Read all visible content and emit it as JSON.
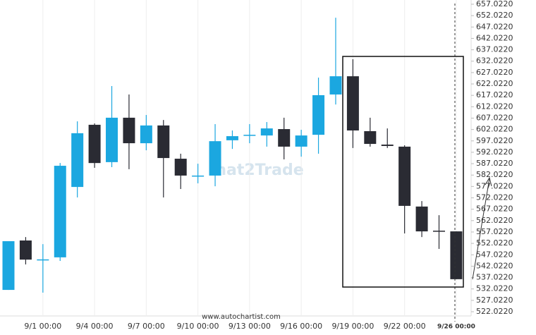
{
  "chart_data": {
    "type": "candlestick",
    "watermark": "hat2Trade",
    "source": "www.autochartist.com",
    "up_color": "#1ba7e0",
    "down_color": "#2a2b33",
    "categories": [
      null,
      null,
      "9/1 00:00",
      null,
      null,
      "9/4 00:00",
      null,
      null,
      "9/7 00:00",
      null,
      null,
      "9/10 00:00",
      null,
      null,
      "9/13 00:00",
      null,
      null,
      "9/16 00:00",
      null,
      null,
      "9/19 00:00",
      null,
      null,
      "9/22 00:00",
      null,
      null,
      "9/26 00:00"
    ],
    "open": [
      531.6,
      553.3,
      545.0,
      545.9,
      576.8,
      604.1,
      587.7,
      607.2,
      596.0,
      603.8,
      589.2,
      581.8,
      581.8,
      597.3,
      599.7,
      599.4,
      602.2,
      594.5,
      599.7,
      617.4,
      625.4,
      601.3,
      595.4,
      594.5,
      568.2,
      557.6,
      557.3
    ],
    "high": [
      553.0,
      554.8,
      551.7,
      587.3,
      605.6,
      604.7,
      621.1,
      617.4,
      608.4,
      606.2,
      591.4,
      587.0,
      604.4,
      601.6,
      604.4,
      605.3,
      607.2,
      601.9,
      624.8,
      651.1,
      632.9,
      607.2,
      602.5,
      595.1,
      570.6,
      564.4,
      557.3
    ],
    "low": [
      531.6,
      542.8,
      530.4,
      544.3,
      572.2,
      585.2,
      585.5,
      584.6,
      592.9,
      572.2,
      575.9,
      578.4,
      577.1,
      593.5,
      596.0,
      594.5,
      588.9,
      590.1,
      591.4,
      613.0,
      593.9,
      594.5,
      593.9,
      556.4,
      554.8,
      549.6,
      536.3
    ],
    "close": [
      553.0,
      544.9,
      545.0,
      586.1,
      600.4,
      587.3,
      607.2,
      596.0,
      603.8,
      589.5,
      581.8,
      581.8,
      596.9,
      599.1,
      599.7,
      602.5,
      594.5,
      599.4,
      617.1,
      625.4,
      601.6,
      595.7,
      594.8,
      568.5,
      557.3,
      557.3,
      536.3
    ],
    "ylim": [
      522.022,
      657.022
    ],
    "yticks": [
      {
        "value": 522.022,
        "label": "522.0220"
      },
      {
        "value": 527.022,
        "label": "527.0220"
      },
      {
        "value": 532.022,
        "label": "532.0220"
      },
      {
        "value": 537.022,
        "label": "537.0220"
      },
      {
        "value": 542.022,
        "label": "542.0220"
      },
      {
        "value": 547.022,
        "label": "547.0220"
      },
      {
        "value": 552.022,
        "label": "552.0220"
      },
      {
        "value": 557.022,
        "label": "557.0220"
      },
      {
        "value": 562.022,
        "label": "562.0220"
      },
      {
        "value": 567.022,
        "label": "567.0220"
      },
      {
        "value": 572.022,
        "label": "572.0220"
      },
      {
        "value": 577.022,
        "label": "577.0220"
      },
      {
        "value": 582.022,
        "label": "582.0220"
      },
      {
        "value": 587.022,
        "label": "587.0220"
      },
      {
        "value": 592.022,
        "label": "592.0220"
      },
      {
        "value": 597.022,
        "label": "597.0220"
      },
      {
        "value": 602.022,
        "label": "602.0220"
      },
      {
        "value": 607.022,
        "label": "607.0220"
      },
      {
        "value": 612.022,
        "label": "612.0220"
      },
      {
        "value": 617.022,
        "label": "617.0220"
      },
      {
        "value": 622.022,
        "label": "622.0220"
      },
      {
        "value": 627.022,
        "label": "627.0220"
      },
      {
        "value": 632.022,
        "label": "632.0220"
      },
      {
        "value": 637.022,
        "label": "637.0220"
      },
      {
        "value": 642.022,
        "label": "642.0220"
      },
      {
        "value": 647.022,
        "label": "647.0220"
      },
      {
        "value": 652.022,
        "label": "652.0220"
      },
      {
        "value": 657.022,
        "label": "657.0220"
      }
    ]
  }
}
